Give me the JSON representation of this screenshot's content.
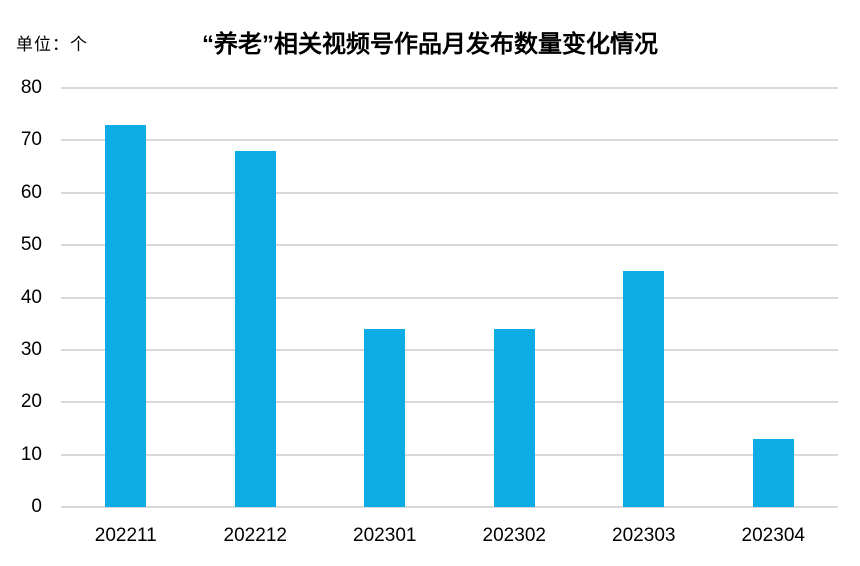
{
  "header": {
    "unit_label": "单位：个"
  },
  "chart_data": {
    "type": "bar",
    "title": "“养老”相关视频号作品月发布数量变化情况",
    "categories": [
      "202211",
      "202212",
      "202301",
      "202302",
      "202303",
      "202304"
    ],
    "values": [
      73,
      68,
      34,
      34,
      45,
      13
    ],
    "xlabel": "",
    "ylabel": "单位：个",
    "ylim": [
      0,
      80
    ],
    "yticks": [
      0,
      10,
      20,
      30,
      40,
      50,
      60,
      70,
      80
    ],
    "grid": true,
    "legend": "none",
    "bar_color": "#0EACE4",
    "gridline_color": "#D9D9D9",
    "text_color": "#000000",
    "background_color": "#FFFFFF"
  }
}
